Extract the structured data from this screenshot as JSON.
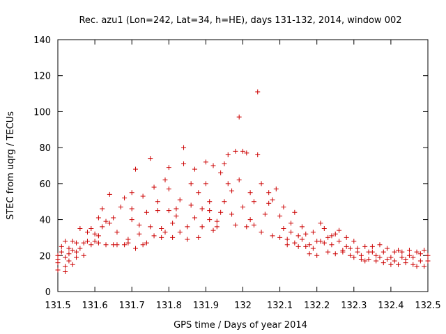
{
  "chart_data": {
    "type": "scatter",
    "title": "Rec. azu1 (Lon=242, Lat=34, h=HE), days 131-132, 2014, window 002",
    "xlabel": "GPS time / Days of year 2014",
    "ylabel": "STEC from uqrg / TECUs",
    "xlim": [
      131.5,
      132.5
    ],
    "ylim": [
      0,
      140
    ],
    "x_ticks": [
      "131.5",
      "131.6",
      "131.7",
      "131.8",
      "131.9",
      "132",
      "132.1",
      "132.2",
      "132.3",
      "132.4",
      "132.5"
    ],
    "y_ticks": [
      "0",
      "20",
      "40",
      "60",
      "80",
      "100",
      "120",
      "140"
    ],
    "grid": false,
    "legend": "none",
    "marker": "plus",
    "color": "#cc0000",
    "series": [
      {
        "points": [
          [
            131.5,
            12
          ],
          [
            131.5,
            16
          ],
          [
            131.5,
            18
          ],
          [
            131.5,
            20
          ],
          [
            131.51,
            22
          ],
          [
            131.51,
            25
          ],
          [
            131.52,
            11
          ],
          [
            131.52,
            14
          ],
          [
            131.52,
            19
          ],
          [
            131.52,
            28
          ],
          [
            131.53,
            17
          ],
          [
            131.53,
            21
          ],
          [
            131.53,
            24
          ],
          [
            131.54,
            15
          ],
          [
            131.54,
            23
          ],
          [
            131.54,
            28
          ],
          [
            131.55,
            19
          ],
          [
            131.55,
            22
          ],
          [
            131.55,
            27
          ],
          [
            131.56,
            35
          ],
          [
            131.56,
            24
          ],
          [
            131.57,
            20
          ],
          [
            131.57,
            27
          ],
          [
            131.58,
            28
          ],
          [
            131.58,
            33
          ],
          [
            131.59,
            26
          ],
          [
            131.59,
            35
          ],
          [
            131.6,
            28
          ],
          [
            131.6,
            32
          ],
          [
            131.61,
            41
          ],
          [
            131.61,
            27
          ],
          [
            131.61,
            31
          ],
          [
            131.62,
            36
          ],
          [
            131.62,
            46
          ],
          [
            131.63,
            39
          ],
          [
            131.63,
            26
          ],
          [
            131.64,
            54
          ],
          [
            131.64,
            38
          ],
          [
            131.65,
            41
          ],
          [
            131.65,
            26
          ],
          [
            131.66,
            33
          ],
          [
            131.66,
            26
          ],
          [
            131.67,
            47
          ],
          [
            131.68,
            52
          ],
          [
            131.68,
            26
          ],
          [
            131.69,
            29
          ],
          [
            131.69,
            27
          ],
          [
            131.7,
            46
          ],
          [
            131.7,
            40
          ],
          [
            131.7,
            55
          ],
          [
            131.71,
            24
          ],
          [
            131.71,
            68
          ],
          [
            131.72,
            37
          ],
          [
            131.72,
            32
          ],
          [
            131.73,
            26
          ],
          [
            131.73,
            53
          ],
          [
            131.74,
            44
          ],
          [
            131.74,
            27
          ],
          [
            131.75,
            74
          ],
          [
            131.75,
            36
          ],
          [
            131.76,
            58
          ],
          [
            131.76,
            31
          ],
          [
            131.77,
            45
          ],
          [
            131.77,
            50
          ],
          [
            131.78,
            30
          ],
          [
            131.78,
            35
          ],
          [
            131.79,
            33
          ],
          [
            131.79,
            62
          ],
          [
            131.8,
            69
          ],
          [
            131.8,
            57
          ],
          [
            131.8,
            45
          ],
          [
            131.81,
            38
          ],
          [
            131.81,
            30
          ],
          [
            131.82,
            42
          ],
          [
            131.82,
            46
          ],
          [
            131.83,
            51
          ],
          [
            131.83,
            33
          ],
          [
            131.84,
            71
          ],
          [
            131.84,
            80
          ],
          [
            131.85,
            29
          ],
          [
            131.85,
            36
          ],
          [
            131.86,
            48
          ],
          [
            131.86,
            60
          ],
          [
            131.87,
            68
          ],
          [
            131.87,
            41
          ],
          [
            131.88,
            55
          ],
          [
            131.88,
            30
          ],
          [
            131.89,
            46
          ],
          [
            131.89,
            36
          ],
          [
            131.9,
            72
          ],
          [
            131.9,
            60
          ],
          [
            131.91,
            45
          ],
          [
            131.91,
            50
          ],
          [
            131.91,
            40
          ],
          [
            131.92,
            34
          ],
          [
            131.92,
            70
          ],
          [
            131.93,
            36
          ],
          [
            131.93,
            39
          ],
          [
            131.94,
            44
          ],
          [
            131.94,
            66
          ],
          [
            131.95,
            71
          ],
          [
            131.95,
            50
          ],
          [
            131.96,
            76
          ],
          [
            131.96,
            60
          ],
          [
            131.97,
            56
          ],
          [
            131.97,
            43
          ],
          [
            131.98,
            37
          ],
          [
            131.98,
            78
          ],
          [
            131.99,
            97
          ],
          [
            131.99,
            62
          ],
          [
            132.0,
            78
          ],
          [
            132.0,
            47
          ],
          [
            132.01,
            36
          ],
          [
            132.01,
            77
          ],
          [
            132.02,
            55
          ],
          [
            132.02,
            40
          ],
          [
            132.03,
            37
          ],
          [
            132.03,
            50
          ],
          [
            132.04,
            111
          ],
          [
            132.04,
            76
          ],
          [
            132.05,
            60
          ],
          [
            132.05,
            33
          ],
          [
            132.06,
            43
          ],
          [
            132.07,
            55
          ],
          [
            132.07,
            49
          ],
          [
            132.08,
            31
          ],
          [
            132.08,
            51
          ],
          [
            132.09,
            57
          ],
          [
            132.1,
            42
          ],
          [
            132.1,
            30
          ],
          [
            132.11,
            47
          ],
          [
            132.11,
            35
          ],
          [
            132.12,
            26
          ],
          [
            132.12,
            29
          ],
          [
            132.13,
            38
          ],
          [
            132.13,
            33
          ],
          [
            132.14,
            44
          ],
          [
            132.14,
            27
          ],
          [
            132.15,
            31
          ],
          [
            132.15,
            25
          ],
          [
            132.16,
            36
          ],
          [
            132.16,
            29
          ],
          [
            132.17,
            25
          ],
          [
            132.17,
            32
          ],
          [
            132.18,
            26
          ],
          [
            132.18,
            21
          ],
          [
            132.19,
            24
          ],
          [
            132.19,
            33
          ],
          [
            132.2,
            28
          ],
          [
            132.2,
            20
          ],
          [
            132.21,
            28
          ],
          [
            132.21,
            38
          ],
          [
            132.22,
            35
          ],
          [
            132.22,
            27
          ],
          [
            132.23,
            30
          ],
          [
            132.23,
            22
          ],
          [
            132.24,
            31
          ],
          [
            132.24,
            26
          ],
          [
            132.25,
            21
          ],
          [
            132.25,
            32
          ],
          [
            132.26,
            28
          ],
          [
            132.26,
            34
          ],
          [
            132.27,
            23
          ],
          [
            132.27,
            22
          ],
          [
            132.28,
            30
          ],
          [
            132.28,
            25
          ],
          [
            132.29,
            20
          ],
          [
            132.29,
            24
          ],
          [
            132.3,
            28
          ],
          [
            132.3,
            19
          ],
          [
            132.31,
            22
          ],
          [
            132.31,
            24
          ],
          [
            132.32,
            18
          ],
          [
            132.32,
            20
          ],
          [
            132.33,
            25
          ],
          [
            132.33,
            17
          ],
          [
            132.34,
            22
          ],
          [
            132.34,
            18
          ],
          [
            132.35,
            25
          ],
          [
            132.35,
            22
          ],
          [
            132.36,
            20
          ],
          [
            132.36,
            17
          ],
          [
            132.37,
            19
          ],
          [
            132.37,
            26
          ],
          [
            132.38,
            16
          ],
          [
            132.38,
            22
          ],
          [
            132.39,
            18
          ],
          [
            132.39,
            24
          ],
          [
            132.4,
            15
          ],
          [
            132.4,
            19
          ],
          [
            132.41,
            22
          ],
          [
            132.41,
            17
          ],
          [
            132.42,
            23
          ],
          [
            132.42,
            15
          ],
          [
            132.43,
            19
          ],
          [
            132.43,
            22
          ],
          [
            132.44,
            18
          ],
          [
            132.44,
            16
          ],
          [
            132.45,
            23
          ],
          [
            132.45,
            20
          ],
          [
            132.46,
            15
          ],
          [
            132.46,
            19
          ],
          [
            132.47,
            14
          ],
          [
            132.47,
            22
          ],
          [
            132.48,
            17
          ],
          [
            132.48,
            21
          ],
          [
            132.49,
            14
          ],
          [
            132.49,
            23
          ],
          [
            132.5,
            17
          ],
          [
            132.5,
            20
          ]
        ]
      }
    ]
  }
}
